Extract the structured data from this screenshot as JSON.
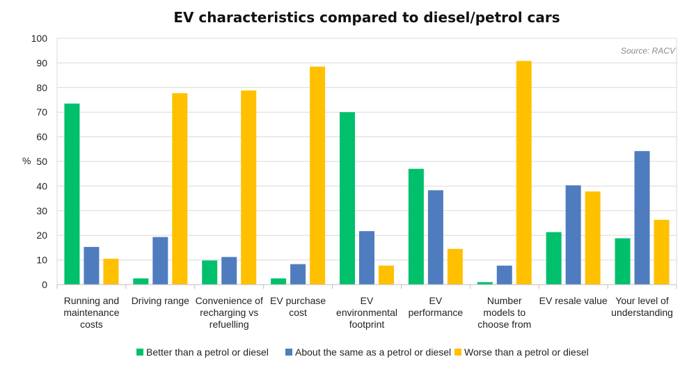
{
  "chart_data": {
    "type": "bar",
    "title": "EV characteristics compared to diesel/petrol cars",
    "source": "Source: RACV",
    "ylabel": "%",
    "ylim": [
      0,
      100
    ],
    "yticks": [
      0,
      10,
      20,
      30,
      40,
      50,
      60,
      70,
      80,
      90,
      100
    ],
    "grid": true,
    "legend_position": "bottom",
    "categories": [
      [
        "Running and",
        "maintenance",
        "costs"
      ],
      [
        "Driving range"
      ],
      [
        "Convenience of",
        "recharging vs",
        "refuelling"
      ],
      [
        "EV purchase",
        "cost"
      ],
      [
        "EV",
        "environmental",
        "footprint"
      ],
      [
        "EV",
        "performance"
      ],
      [
        "Number",
        "models to",
        "choose from"
      ],
      [
        "EV resale value"
      ],
      [
        "Your level of",
        "understanding"
      ]
    ],
    "series": [
      {
        "name": "Better than a petrol or diesel",
        "color": "#00c06b",
        "values": [
          73.5,
          2.5,
          9.8,
          2.5,
          70,
          47,
          1,
          21.3,
          18.8
        ]
      },
      {
        "name": "About the same as a petrol or diesel",
        "color": "#4f7cbf",
        "values": [
          15.3,
          19.3,
          11.2,
          8.3,
          21.7,
          38.3,
          7.7,
          40.3,
          54.2
        ]
      },
      {
        "name": "Worse than a petrol or diesel",
        "color": "#ffc000",
        "values": [
          10.5,
          77.7,
          78.8,
          88.5,
          7.7,
          14.5,
          90.8,
          37.8,
          26.3
        ]
      }
    ]
  }
}
